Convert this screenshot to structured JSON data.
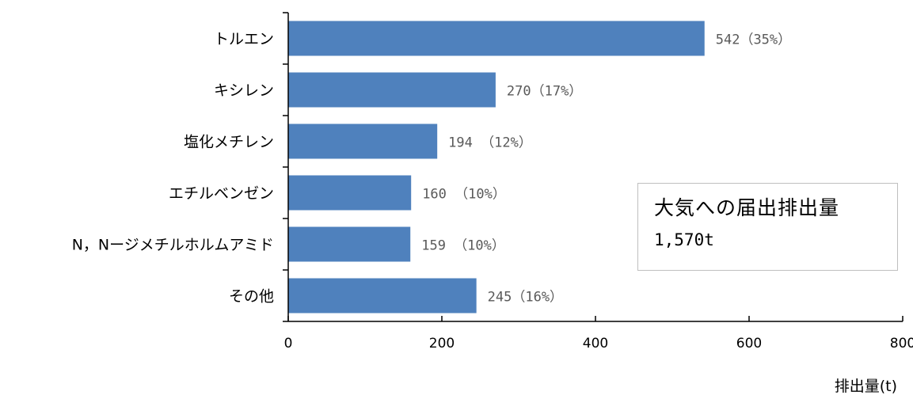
{
  "chart_data": {
    "type": "bar",
    "orientation": "horizontal",
    "categories": [
      "トルエン",
      "キシレン",
      "塩化メチレン",
      "エチルベンゼン",
      "N，Nージメチルホルムアミド",
      "その他"
    ],
    "values": [
      542,
      270,
      194,
      160,
      159,
      245
    ],
    "data_labels": [
      "542（35%）",
      "270（17%）",
      "194 （12%）",
      "160 （10%）",
      "159 （10%）",
      "245（16%）"
    ],
    "xlabel": "排出量(t)",
    "xlim": [
      0,
      800
    ],
    "x_ticks": [
      0,
      200,
      400,
      600,
      800
    ],
    "grid": false,
    "legend": "none",
    "bar_color": "#4f81bd",
    "axis_color": "#000000"
  },
  "summary_box": {
    "title": "大気への届出排出量",
    "value": "1,570t"
  }
}
